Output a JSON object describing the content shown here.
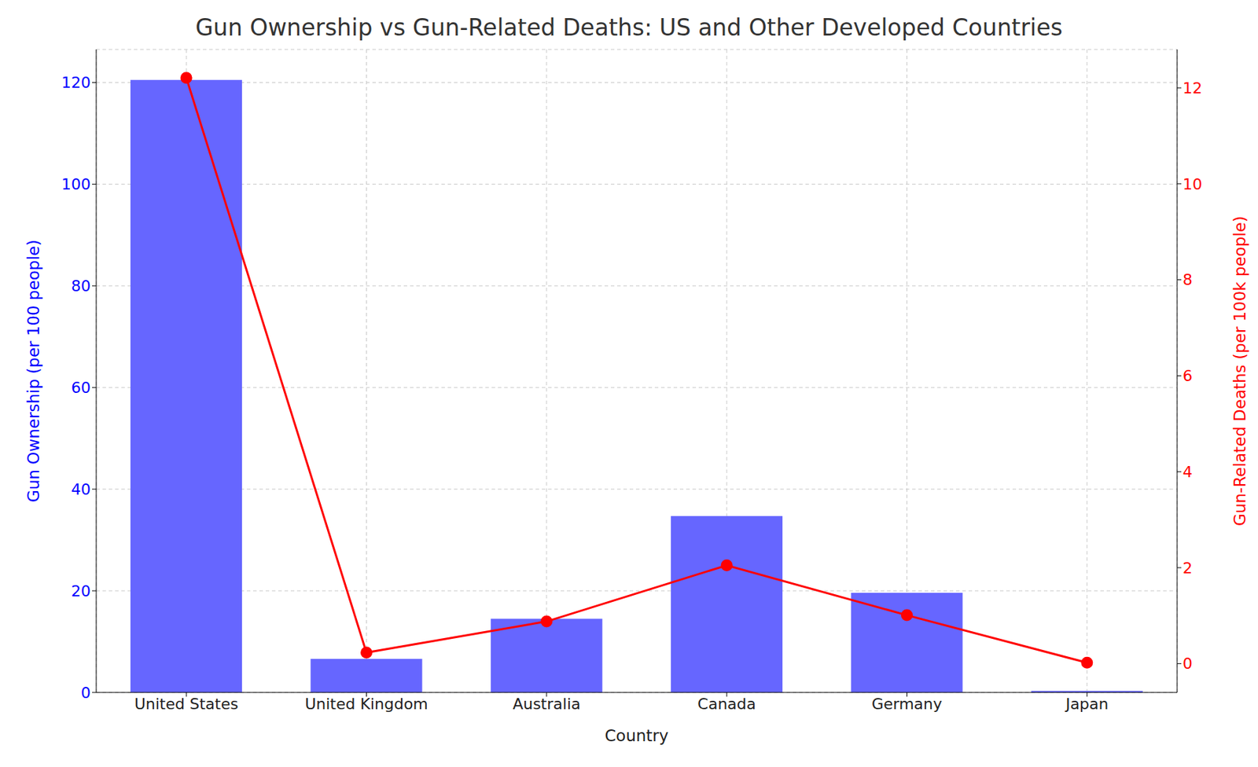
{
  "chart_data": {
    "type": "bar",
    "title": "Gun Ownership vs Gun-Related Deaths: US and Other Developed Countries",
    "x_label": "Country",
    "y_label": "Gun Ownership (per 100 people)",
    "y2_label": "Gun-Related Deaths (per 100k people)",
    "categories": [
      "United States",
      "United Kingdom",
      "Australia",
      "Canada",
      "Germany",
      "Japan"
    ],
    "series": [
      {
        "type": "bar",
        "color": "#6666ff",
        "values": [
          120.5,
          6.6,
          14.5,
          34.7,
          19.6,
          0.3
        ]
      },
      {
        "type": "line",
        "axis": "y2",
        "color": "#ff0000",
        "marker": "o",
        "line_style": "solid",
        "values": [
          12.21,
          0.23,
          0.88,
          2.05,
          1.01,
          0.02
        ]
      }
    ],
    "ylim": [
      0,
      126.5
    ],
    "yticks": [
      0,
      20,
      40,
      60,
      80,
      100,
      120
    ],
    "y2lim": [
      -0.6,
      12.8
    ],
    "y2ticks": [
      0,
      2,
      4,
      6,
      8,
      10,
      12
    ],
    "grid": true
  }
}
